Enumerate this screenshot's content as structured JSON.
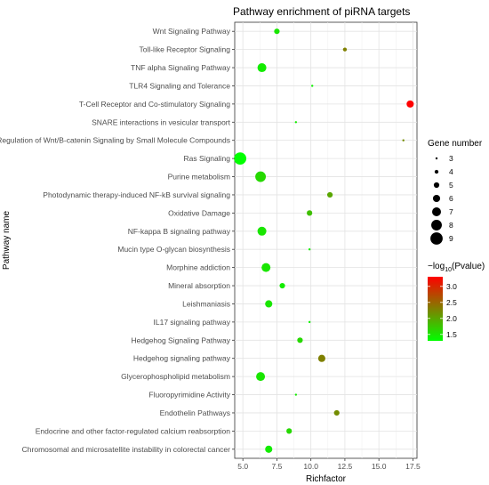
{
  "chart_data": {
    "type": "scatter",
    "title": "Pathway enrichment of piRNA targets",
    "xlabel": "Richfactor",
    "ylabel": "Pathway name",
    "xlim": [
      4.4,
      17.8
    ],
    "x_ticks": [
      5.0,
      7.5,
      10.0,
      12.5,
      15.0,
      17.5
    ],
    "x_tick_labels": [
      "5.0",
      "7.5",
      "10.0",
      "12.5",
      "15.0",
      "17.5"
    ],
    "grid": true,
    "legend_placement": "right",
    "size_legend": {
      "title": "Gene number",
      "values": [
        3,
        4,
        5,
        6,
        7,
        8,
        9
      ],
      "labels": [
        "3",
        "4",
        "5",
        "6",
        "7",
        "8",
        "9"
      ]
    },
    "color_legend": {
      "title_prefix": "−log",
      "title_sub": "10",
      "title_suffix": "(Pvalue)",
      "range": [
        1.3,
        3.3
      ],
      "ticks": [
        1.5,
        2.0,
        2.5,
        3.0
      ],
      "tick_labels": [
        "1.5",
        "2.0",
        "2.5",
        "3.0"
      ],
      "colors": [
        "#00ff00",
        "#ff0000"
      ]
    },
    "points": [
      {
        "pathway": "Wnt Signaling Pathway",
        "x": 7.5,
        "genes": 5,
        "neglog10p": 1.5
      },
      {
        "pathway": "Toll-like Receptor Signaling",
        "x": 12.5,
        "genes": 4,
        "neglog10p": 2.3
      },
      {
        "pathway": "TNF alpha Signaling Pathway",
        "x": 6.4,
        "genes": 7,
        "neglog10p": 1.45
      },
      {
        "pathway": "TLR4 Signaling and Tolerance",
        "x": 10.1,
        "genes": 3,
        "neglog10p": 1.4
      },
      {
        "pathway": "T-Cell Receptor and Co-stimulatory Signaling",
        "x": 17.3,
        "genes": 6,
        "neglog10p": 3.3
      },
      {
        "pathway": "SNARE interactions in vesicular transport",
        "x": 8.9,
        "genes": 3,
        "neglog10p": 1.45
      },
      {
        "pathway": "Regulation of Wnt/B-catenin Signaling by Small Molecule Compounds",
        "x": 16.8,
        "genes": 3,
        "neglog10p": 2.2
      },
      {
        "pathway": "Ras Signaling",
        "x": 4.8,
        "genes": 9,
        "neglog10p": 1.3
      },
      {
        "pathway": "Purine metabolism",
        "x": 6.3,
        "genes": 8,
        "neglog10p": 1.6
      },
      {
        "pathway": "Photodynamic therapy-induced NF-kB survival signaling",
        "x": 11.4,
        "genes": 5,
        "neglog10p": 2.0
      },
      {
        "pathway": "Oxidative Damage",
        "x": 9.9,
        "genes": 5,
        "neglog10p": 1.8
      },
      {
        "pathway": "NF-kappa B signaling pathway",
        "x": 6.4,
        "genes": 7,
        "neglog10p": 1.5
      },
      {
        "pathway": "Mucin type O-glycan biosynthesis",
        "x": 9.9,
        "genes": 3,
        "neglog10p": 1.45
      },
      {
        "pathway": "Morphine addiction",
        "x": 6.7,
        "genes": 7,
        "neglog10p": 1.5
      },
      {
        "pathway": "Mineral absorption",
        "x": 7.9,
        "genes": 5,
        "neglog10p": 1.45
      },
      {
        "pathway": "Leishmaniasis",
        "x": 6.9,
        "genes": 6,
        "neglog10p": 1.5
      },
      {
        "pathway": "IL17 signaling pathway",
        "x": 9.9,
        "genes": 3,
        "neglog10p": 1.4
      },
      {
        "pathway": "Hedgehog Signaling Pathway",
        "x": 9.2,
        "genes": 5,
        "neglog10p": 1.6
      },
      {
        "pathway": "Hedgehog signaling pathway",
        "x": 10.8,
        "genes": 6,
        "neglog10p": 2.3
      },
      {
        "pathway": "Glycerophospholipid metabolism",
        "x": 6.3,
        "genes": 7,
        "neglog10p": 1.5
      },
      {
        "pathway": "Fluoropyrimidine Activity",
        "x": 8.9,
        "genes": 3,
        "neglog10p": 1.45
      },
      {
        "pathway": "Endothelin Pathways",
        "x": 11.9,
        "genes": 5,
        "neglog10p": 2.2
      },
      {
        "pathway": "Endocrine and other factor-regulated calcium reabsorption",
        "x": 8.4,
        "genes": 5,
        "neglog10p": 1.6
      },
      {
        "pathway": "Chromosomal and microsatellite instability in colorectal cancer",
        "x": 6.9,
        "genes": 6,
        "neglog10p": 1.45
      }
    ]
  }
}
